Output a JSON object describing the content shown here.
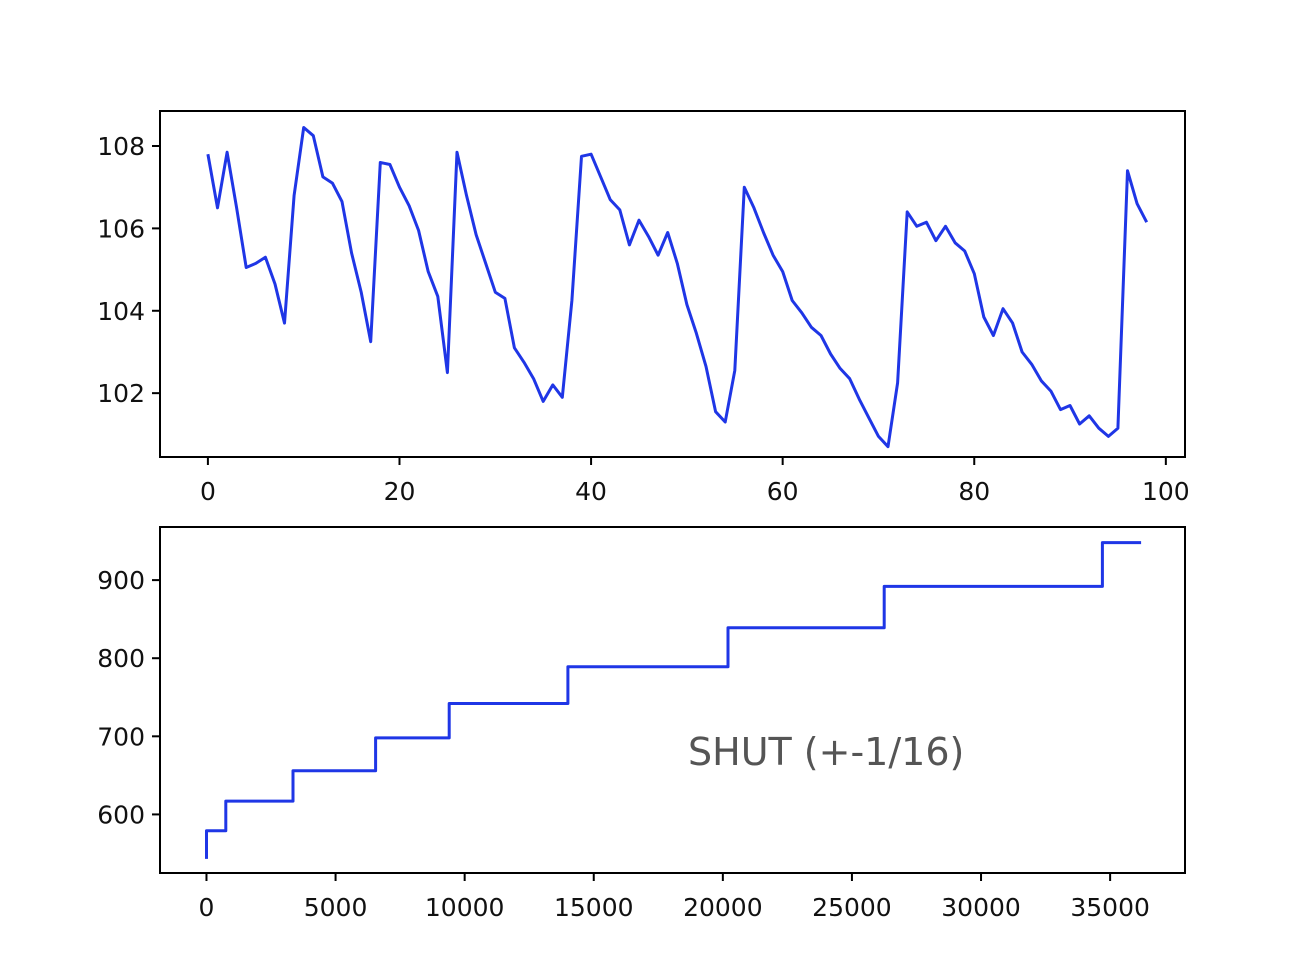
{
  "chart_data": [
    {
      "type": "line",
      "color": "#1f36e6",
      "xlim": [
        -5,
        102
      ],
      "ylim": [
        100.45,
        108.85
      ],
      "xticks": [
        0,
        20,
        40,
        60,
        80,
        100
      ],
      "yticks": [
        102,
        104,
        106,
        108
      ],
      "x": [
        0,
        1,
        2,
        3,
        4,
        5,
        6,
        7,
        8,
        9,
        10,
        11,
        12,
        13,
        14,
        15,
        16,
        17,
        18,
        19,
        20,
        21,
        22,
        23,
        24,
        25,
        26,
        27,
        28,
        29,
        30,
        31,
        32,
        33,
        34,
        35,
        36,
        37,
        38,
        39,
        40,
        41,
        42,
        43,
        44,
        45,
        46,
        47,
        48,
        49,
        50,
        51,
        52,
        53,
        54,
        55,
        56,
        57,
        58,
        59,
        60,
        61,
        62,
        63,
        64,
        65,
        66,
        67,
        68,
        69,
        70,
        71,
        72,
        73,
        74,
        75,
        76,
        77,
        78,
        79,
        80,
        81,
        82,
        83,
        84,
        85,
        86,
        87,
        88,
        89,
        90,
        91,
        92,
        93,
        94,
        95,
        96,
        97,
        98
      ],
      "y": [
        107.8,
        106.5,
        107.85,
        106.5,
        105.05,
        105.15,
        105.3,
        104.65,
        103.7,
        106.8,
        108.45,
        108.25,
        107.25,
        107.1,
        106.65,
        105.4,
        104.45,
        103.25,
        107.6,
        107.55,
        107.0,
        106.55,
        105.95,
        104.95,
        104.35,
        102.5,
        107.85,
        106.8,
        105.85,
        105.15,
        104.45,
        104.3,
        103.1,
        102.75,
        102.35,
        101.8,
        102.2,
        101.9,
        104.25,
        107.75,
        107.8,
        107.25,
        106.7,
        106.45,
        105.6,
        106.2,
        105.8,
        105.35,
        105.9,
        105.15,
        104.15,
        103.45,
        102.65,
        101.55,
        101.3,
        102.55,
        107.0,
        106.5,
        105.9,
        105.35,
        104.95,
        104.25,
        103.95,
        103.6,
        103.4,
        102.95,
        102.6,
        102.35,
        101.85,
        101.4,
        100.95,
        100.7,
        102.25,
        106.4,
        106.05,
        106.15,
        105.7,
        106.05,
        105.65,
        105.45,
        104.9,
        103.85,
        103.4,
        104.05,
        103.7,
        103.0,
        102.7,
        102.3,
        102.05,
        101.6,
        101.7,
        101.25,
        101.45,
        101.15,
        100.95,
        101.15,
        107.4,
        106.6,
        106.15
      ]
    },
    {
      "type": "line",
      "step": true,
      "color": "#1f36e6",
      "xlim": [
        -1800,
        37900
      ],
      "ylim": [
        525,
        968
      ],
      "xticks": [
        0,
        5000,
        10000,
        15000,
        20000,
        25000,
        30000,
        35000
      ],
      "yticks": [
        600,
        700,
        800,
        900
      ],
      "x": [
        0,
        0,
        750,
        750,
        3350,
        3350,
        6550,
        6550,
        9400,
        9400,
        14000,
        14000,
        20200,
        20200,
        26250,
        26250,
        34700,
        34700,
        36200
      ],
      "y": [
        543,
        579,
        579,
        617,
        617,
        656,
        656,
        698,
        698,
        742,
        742,
        789,
        789,
        839,
        839,
        892,
        892,
        948,
        948
      ],
      "annotation": "SHUT  (+-1/16)"
    }
  ]
}
